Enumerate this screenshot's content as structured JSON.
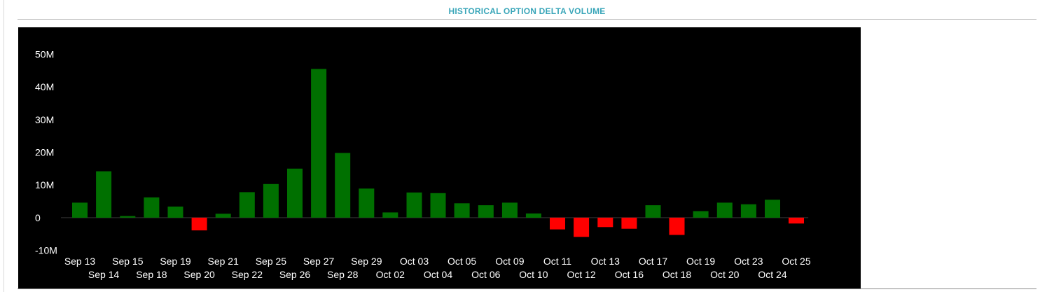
{
  "panel": {
    "title": "HISTORICAL OPTION DELTA VOLUME"
  },
  "colors": {
    "positive": "#007000",
    "negative": "#ff0000",
    "background": "#000000",
    "title": "#3aa6b9",
    "text": "#ffffff"
  },
  "chart_data": {
    "type": "bar",
    "title": "HISTORICAL OPTION DELTA VOLUME",
    "xlabel": "",
    "ylabel": "",
    "ylim": [
      -10000000,
      50000000
    ],
    "yticks": [
      {
        "value": 50000000,
        "label": "50M"
      },
      {
        "value": 40000000,
        "label": "40M"
      },
      {
        "value": 30000000,
        "label": "30M"
      },
      {
        "value": 20000000,
        "label": "20M"
      },
      {
        "value": 10000000,
        "label": "10M"
      },
      {
        "value": 0,
        "label": "0"
      },
      {
        "value": -10000000,
        "label": "-10M"
      }
    ],
    "grid": false,
    "legend": "none",
    "categories": [
      "Sep 13",
      "Sep 14",
      "Sep 15",
      "Sep 18",
      "Sep 19",
      "Sep 20",
      "Sep 21",
      "Sep 22",
      "Sep 25",
      "Sep 26",
      "Sep 27",
      "Sep 28",
      "Sep 29",
      "Oct 02",
      "Oct 03",
      "Oct 04",
      "Oct 05",
      "Oct 06",
      "Oct 09",
      "Oct 10",
      "Oct 11",
      "Oct 12",
      "Oct 13",
      "Oct 16",
      "Oct 17",
      "Oct 18",
      "Oct 19",
      "Oct 20",
      "Oct 23",
      "Oct 24",
      "Oct 25"
    ],
    "values": [
      4600000,
      14200000,
      500000,
      6200000,
      3400000,
      -3900000,
      1200000,
      7800000,
      10300000,
      15000000,
      45500000,
      19800000,
      8900000,
      1600000,
      7700000,
      7500000,
      4400000,
      3800000,
      4600000,
      1300000,
      -3600000,
      -5900000,
      -2900000,
      -3400000,
      3800000,
      -5300000,
      2000000,
      4600000,
      4100000,
      5500000,
      -1800000
    ]
  }
}
